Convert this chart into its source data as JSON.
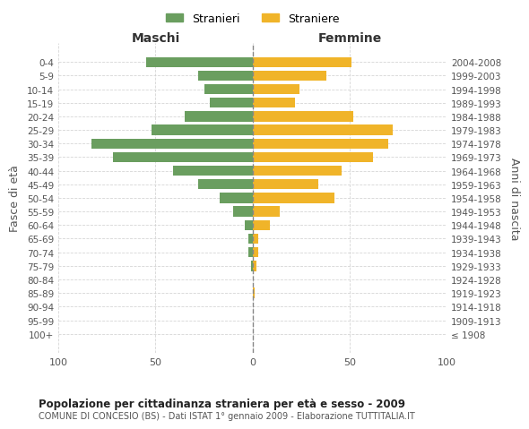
{
  "age_groups": [
    "100+",
    "95-99",
    "90-94",
    "85-89",
    "80-84",
    "75-79",
    "70-74",
    "65-69",
    "60-64",
    "55-59",
    "50-54",
    "45-49",
    "40-44",
    "35-39",
    "30-34",
    "25-29",
    "20-24",
    "15-19",
    "10-14",
    "5-9",
    "0-4"
  ],
  "birth_years": [
    "≤ 1908",
    "1909-1913",
    "1914-1918",
    "1919-1923",
    "1924-1928",
    "1929-1933",
    "1934-1938",
    "1939-1943",
    "1944-1948",
    "1949-1953",
    "1954-1958",
    "1959-1963",
    "1964-1968",
    "1969-1973",
    "1974-1978",
    "1979-1983",
    "1984-1988",
    "1989-1993",
    "1994-1998",
    "1999-2003",
    "2004-2008"
  ],
  "males": [
    0,
    0,
    0,
    0,
    0,
    1,
    2,
    2,
    4,
    10,
    17,
    28,
    41,
    72,
    83,
    52,
    35,
    22,
    25,
    28,
    55
  ],
  "females": [
    0,
    0,
    0,
    1,
    0,
    2,
    3,
    3,
    9,
    14,
    42,
    34,
    46,
    62,
    70,
    72,
    52,
    22,
    24,
    38,
    51
  ],
  "male_color": "#6a9e5f",
  "female_color": "#f0b429",
  "male_label": "Stranieri",
  "female_label": "Straniere",
  "title": "Popolazione per cittadinanza straniera per età e sesso - 2009",
  "subtitle": "COMUNE DI CONCESIO (BS) - Dati ISTAT 1° gennaio 2009 - Elaborazione TUTTITALIA.IT",
  "xlabel_left": "Maschi",
  "xlabel_right": "Femmine",
  "ylabel_left": "Fasce di età",
  "ylabel_right": "Anni di nascita",
  "xlim": 100,
  "background_color": "#ffffff",
  "grid_color": "#cccccc",
  "axis_label_color": "#555555",
  "tick_color": "#555555"
}
